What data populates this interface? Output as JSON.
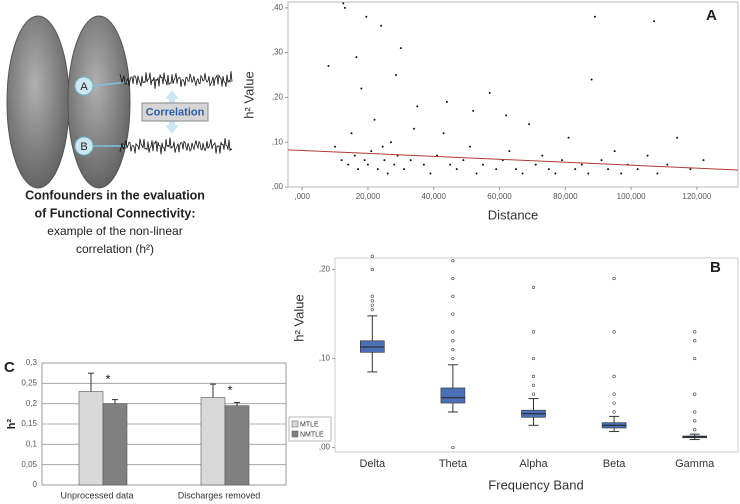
{
  "chart_data": [
    {
      "type": "scatter",
      "panel_label": "A",
      "x_label": "Distance",
      "y_label": "h² Value",
      "x": [
        8000,
        10000,
        12000,
        13000,
        14000,
        15000,
        16000,
        17000,
        18000,
        19000,
        20000,
        21000,
        22000,
        23000,
        24000,
        25000,
        26000,
        27000,
        28000,
        29000,
        30000,
        31000,
        33000,
        35000,
        37000,
        39000,
        41000,
        43000,
        45000,
        47000,
        49000,
        51000,
        53000,
        55000,
        57000,
        59000,
        61000,
        63000,
        65000,
        67000,
        69000,
        71000,
        73000,
        75000,
        77000,
        79000,
        81000,
        83000,
        85000,
        87000,
        89000,
        91000,
        93000,
        95000,
        97000,
        99000,
        102000,
        105000,
        108000,
        111000,
        114000,
        118000,
        122000,
        16500,
        19500,
        24500,
        28500,
        34000,
        44000,
        52000,
        62000,
        88000,
        107000,
        12500
      ],
      "y": [
        0.27,
        0.09,
        0.06,
        0.4,
        0.05,
        0.12,
        0.07,
        0.04,
        0.22,
        0.06,
        0.05,
        0.08,
        0.15,
        0.04,
        0.36,
        0.06,
        0.03,
        0.1,
        0.05,
        0.07,
        0.31,
        0.04,
        0.06,
        0.18,
        0.05,
        0.03,
        0.07,
        0.12,
        0.05,
        0.04,
        0.06,
        0.09,
        0.03,
        0.05,
        0.21,
        0.04,
        0.06,
        0.08,
        0.04,
        0.03,
        0.14,
        0.05,
        0.07,
        0.04,
        0.03,
        0.06,
        0.11,
        0.04,
        0.05,
        0.03,
        0.38,
        0.06,
        0.04,
        0.08,
        0.03,
        0.05,
        0.04,
        0.07,
        0.03,
        0.05,
        0.11,
        0.04,
        0.06,
        0.29,
        0.38,
        0.09,
        0.25,
        0.13,
        0.19,
        0.17,
        0.16,
        0.24,
        0.37,
        0.41
      ],
      "color": "#111111",
      "trend_line": {
        "x": [
          -4300,
          132500
        ],
        "y": [
          0.083,
          0.038
        ],
        "color": "#b03a3a"
      },
      "xlim": [
        -4300,
        132500
      ],
      "ylim": [
        0,
        0.413
      ],
      "xticks": [
        {
          "value": 0,
          "label": ",000"
        },
        {
          "value": 20000,
          "label": "20,000"
        },
        {
          "value": 40000,
          "label": "40,000"
        },
        {
          "value": 60000,
          "label": "60,000"
        },
        {
          "value": 80000,
          "label": "80,000"
        },
        {
          "value": 100000,
          "label": "100,000"
        },
        {
          "value": 120000,
          "label": "120,000"
        }
      ],
      "yticks": [
        {
          "value": 0,
          "label": ",00"
        },
        {
          "value": 0.1,
          "label": ",10"
        },
        {
          "value": 0.2,
          "label": ",20"
        },
        {
          "value": 0.3,
          "label": ",30"
        },
        {
          "value": 0.4,
          "label": ",40"
        }
      ]
    },
    {
      "type": "box",
      "panel_label": "B",
      "x_label": "Frequency Band",
      "y_label": "h² Value",
      "categories": [
        "Delta",
        "Theta",
        "Alpha",
        "Beta",
        "Gamma"
      ],
      "color": "#4a6fb5",
      "boxes": [
        {
          "min": 0.085,
          "q1": 0.107,
          "median": 0.113,
          "q3": 0.12,
          "max": 0.148,
          "outliers": [
            0.155,
            0.16,
            0.165,
            0.17,
            0.2,
            0.215
          ]
        },
        {
          "min": 0.04,
          "q1": 0.05,
          "median": 0.056,
          "q3": 0.067,
          "max": 0.093,
          "outliers": [
            0,
            0.1,
            0.11,
            0.12,
            0.13,
            0.15,
            0.17,
            0.19,
            0.21
          ]
        },
        {
          "min": 0.025,
          "q1": 0.034,
          "median": 0.038,
          "q3": 0.042,
          "max": 0.055,
          "outliers": [
            0.06,
            0.07,
            0.08,
            0.1,
            0.13,
            0.18
          ]
        },
        {
          "min": 0.018,
          "q1": 0.022,
          "median": 0.025,
          "q3": 0.028,
          "max": 0.035,
          "outliers": [
            0.04,
            0.05,
            0.06,
            0.08,
            0.13,
            0.19
          ]
        },
        {
          "min": 0.009,
          "q1": 0.011,
          "median": 0.012,
          "q3": 0.013,
          "max": 0.015,
          "outliers": [
            0.02,
            0.03,
            0.04,
            0.06,
            0.1,
            0.12,
            0.13
          ]
        }
      ],
      "ylim": [
        -0.005,
        0.213
      ],
      "yticks": [
        {
          "value": 0,
          "label": ",00"
        },
        {
          "value": 0.1,
          "label": ",10"
        },
        {
          "value": 0.2,
          "label": ",20"
        }
      ]
    },
    {
      "type": "bar",
      "panel_label": "C",
      "y_label": "h²",
      "categories": [
        "Unprocessed data",
        "Discharges removed"
      ],
      "series": [
        {
          "name": "MTLE",
          "color": "#d9d9d9",
          "values": [
            0.23,
            0.215
          ],
          "errors": [
            0.045,
            0.033
          ]
        },
        {
          "name": "NMTLE",
          "color": "#808080",
          "values": [
            0.2,
            0.195
          ],
          "errors": [
            0.01,
            0.008
          ]
        }
      ],
      "significance_labels": [
        "*",
        "*"
      ],
      "ylim": [
        0,
        0.3
      ],
      "yticks": [
        0,
        {
          "value": 0.05,
          "label": "0,05"
        },
        {
          "value": 0.1,
          "label": "0,1"
        },
        {
          "value": 0.15,
          "label": "0,15"
        },
        {
          "value": 0.2,
          "label": "0,2"
        },
        {
          "value": 0.25,
          "label": "0,25"
        },
        {
          "value": 0.3,
          "label": "0,3"
        }
      ],
      "grid": true,
      "legend": "right"
    }
  ],
  "diagram": {
    "node_labels": [
      "A",
      "B"
    ],
    "correlation_label": "Correlation",
    "caption": {
      "title_lines": [
        "Confounders in the evaluation",
        "of Functional Connectivity:"
      ],
      "body_lines": [
        "example of the non-linear",
        "correlation (h²)"
      ]
    }
  }
}
